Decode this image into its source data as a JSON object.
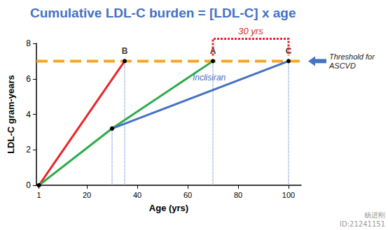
{
  "chart_data": {
    "type": "line",
    "title": "Cumulative LDL-C burden = [LDL-C] x age",
    "x_label": "Age (yrs)",
    "y_label": "LDL-C gram-years",
    "xlim": [
      0,
      105
    ],
    "xticks": [
      1,
      20,
      40,
      60,
      80,
      100
    ],
    "ylim": [
      0,
      8
    ],
    "yticks": [
      0,
      2,
      4,
      6,
      8
    ],
    "grid": false,
    "series": [
      {
        "color": "#e8262a",
        "marker": "circle",
        "line_style": "solid",
        "x": [
          1,
          35
        ],
        "values": [
          0,
          7
        ]
      },
      {
        "color": "#2eaa4a",
        "marker": "circle",
        "line_style": "solid",
        "x": [
          1,
          30,
          70
        ],
        "values": [
          0,
          3.2,
          7
        ]
      },
      {
        "name": "Inclisiran",
        "color": "#4472c4",
        "marker": "circle",
        "line_style": "solid",
        "x": [
          30,
          100
        ],
        "values": [
          3.2,
          7
        ]
      }
    ],
    "threshold": {
      "y": 7,
      "label": "Threshold for\nASCVD",
      "color": "#f5a623",
      "line_style": "dashed"
    },
    "drop_lines": {
      "color": "#4472c4",
      "line_style": "dotted",
      "points": [
        {
          "x": 30,
          "y": 3.2
        },
        {
          "x": 35,
          "y": 7
        },
        {
          "x": 70,
          "y": 7
        },
        {
          "x": 100,
          "y": 7
        }
      ]
    },
    "point_labels": [
      {
        "text": "B",
        "x": 35,
        "y": 7
      },
      {
        "text": "A",
        "x": 70,
        "y": 7
      },
      {
        "text": "C",
        "x": 100,
        "y": 7
      }
    ],
    "span": {
      "label": "30 yrs",
      "x": [
        70,
        100
      ],
      "color": "#e8262a"
    },
    "watermark": [
      "杨进刚",
      "ID:21241151"
    ]
  }
}
